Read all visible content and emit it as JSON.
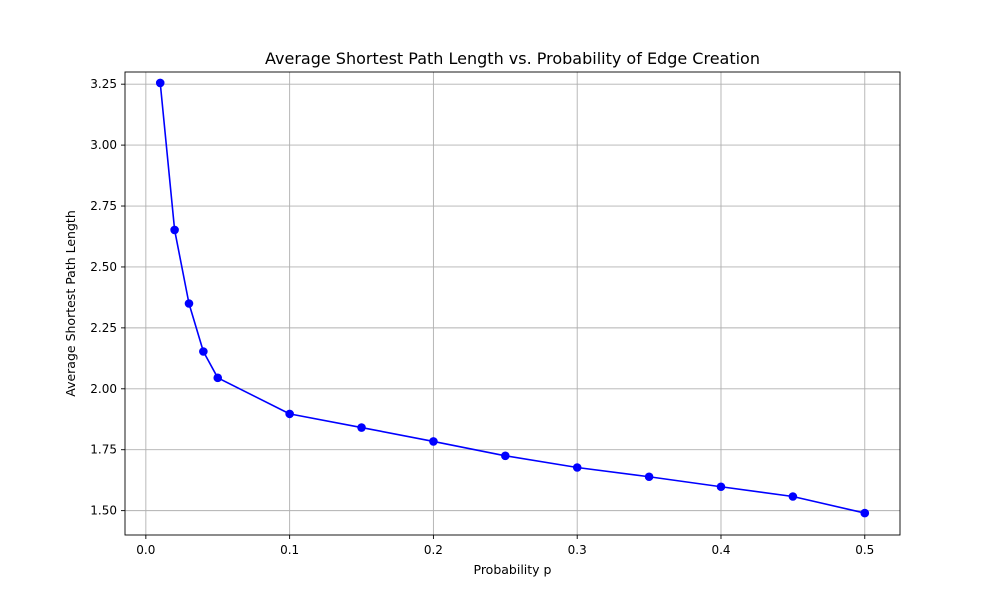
{
  "chart_data": {
    "type": "line",
    "title": "Average Shortest Path Length vs. Probability of Edge Creation",
    "xlabel": "Probability p",
    "ylabel": "Average Shortest Path Length",
    "xlim": [
      -0.0145,
      0.5245
    ],
    "ylim": [
      1.4,
      3.3
    ],
    "xticks": [
      0.0,
      0.1,
      0.2,
      0.3,
      0.4,
      0.5
    ],
    "xtick_labels": [
      "0.0",
      "0.1",
      "0.2",
      "0.3",
      "0.4",
      "0.5"
    ],
    "yticks": [
      1.5,
      1.75,
      2.0,
      2.25,
      2.5,
      2.75,
      3.0,
      3.25
    ],
    "ytick_labels": [
      "1.50",
      "1.75",
      "2.00",
      "2.25",
      "2.50",
      "2.75",
      "3.00",
      "3.25"
    ],
    "grid": true,
    "series": [
      {
        "color": "#0000ff",
        "marker": "circle",
        "x": [
          0.01,
          0.02,
          0.03,
          0.04,
          0.05,
          0.1,
          0.15,
          0.2,
          0.25,
          0.3,
          0.35,
          0.4,
          0.45,
          0.5
        ],
        "y": [
          3.255,
          2.652,
          2.35,
          2.153,
          2.045,
          1.897,
          1.841,
          1.784,
          1.725,
          1.677,
          1.639,
          1.598,
          1.558,
          1.49
        ]
      }
    ]
  }
}
